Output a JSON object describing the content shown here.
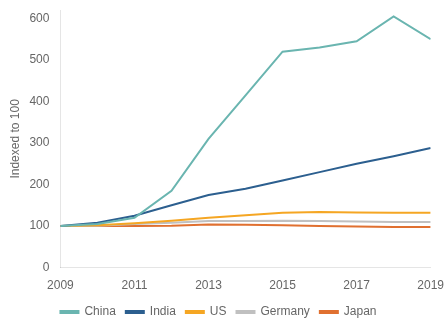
{
  "chart_data": {
    "type": "line",
    "x": [
      2009,
      2010,
      2011,
      2012,
      2013,
      2014,
      2015,
      2016,
      2017,
      2018,
      2019
    ],
    "series": [
      {
        "name": "China",
        "color": "#6ab5b0",
        "values": [
          100,
          105,
          120,
          185,
          310,
          415,
          520,
          530,
          545,
          605,
          550
        ]
      },
      {
        "name": "India",
        "color": "#2c5f8f",
        "values": [
          100,
          108,
          125,
          150,
          175,
          190,
          210,
          230,
          250,
          268,
          288
        ]
      },
      {
        "name": "US",
        "color": "#f5a623",
        "values": [
          100,
          102,
          107,
          113,
          120,
          126,
          132,
          134,
          133,
          132,
          132
        ]
      },
      {
        "name": "Germany",
        "color": "#c0c0c0",
        "values": [
          100,
          101,
          105,
          108,
          112,
          112,
          113,
          112,
          111,
          110,
          110
        ]
      },
      {
        "name": "Japan",
        "color": "#e07030",
        "values": [
          100,
          100,
          100,
          101,
          104,
          103,
          102,
          100,
          99,
          98,
          98
        ]
      }
    ],
    "ylabel": "Indexed to 100",
    "xlim": [
      2009,
      2019
    ],
    "xticks": [
      2009,
      2011,
      2013,
      2015,
      2017,
      2019
    ],
    "ylim": [
      0,
      620
    ],
    "yticks": [
      0,
      100,
      200,
      300,
      400,
      500,
      600
    ],
    "grid": false,
    "legend": "bottom"
  }
}
